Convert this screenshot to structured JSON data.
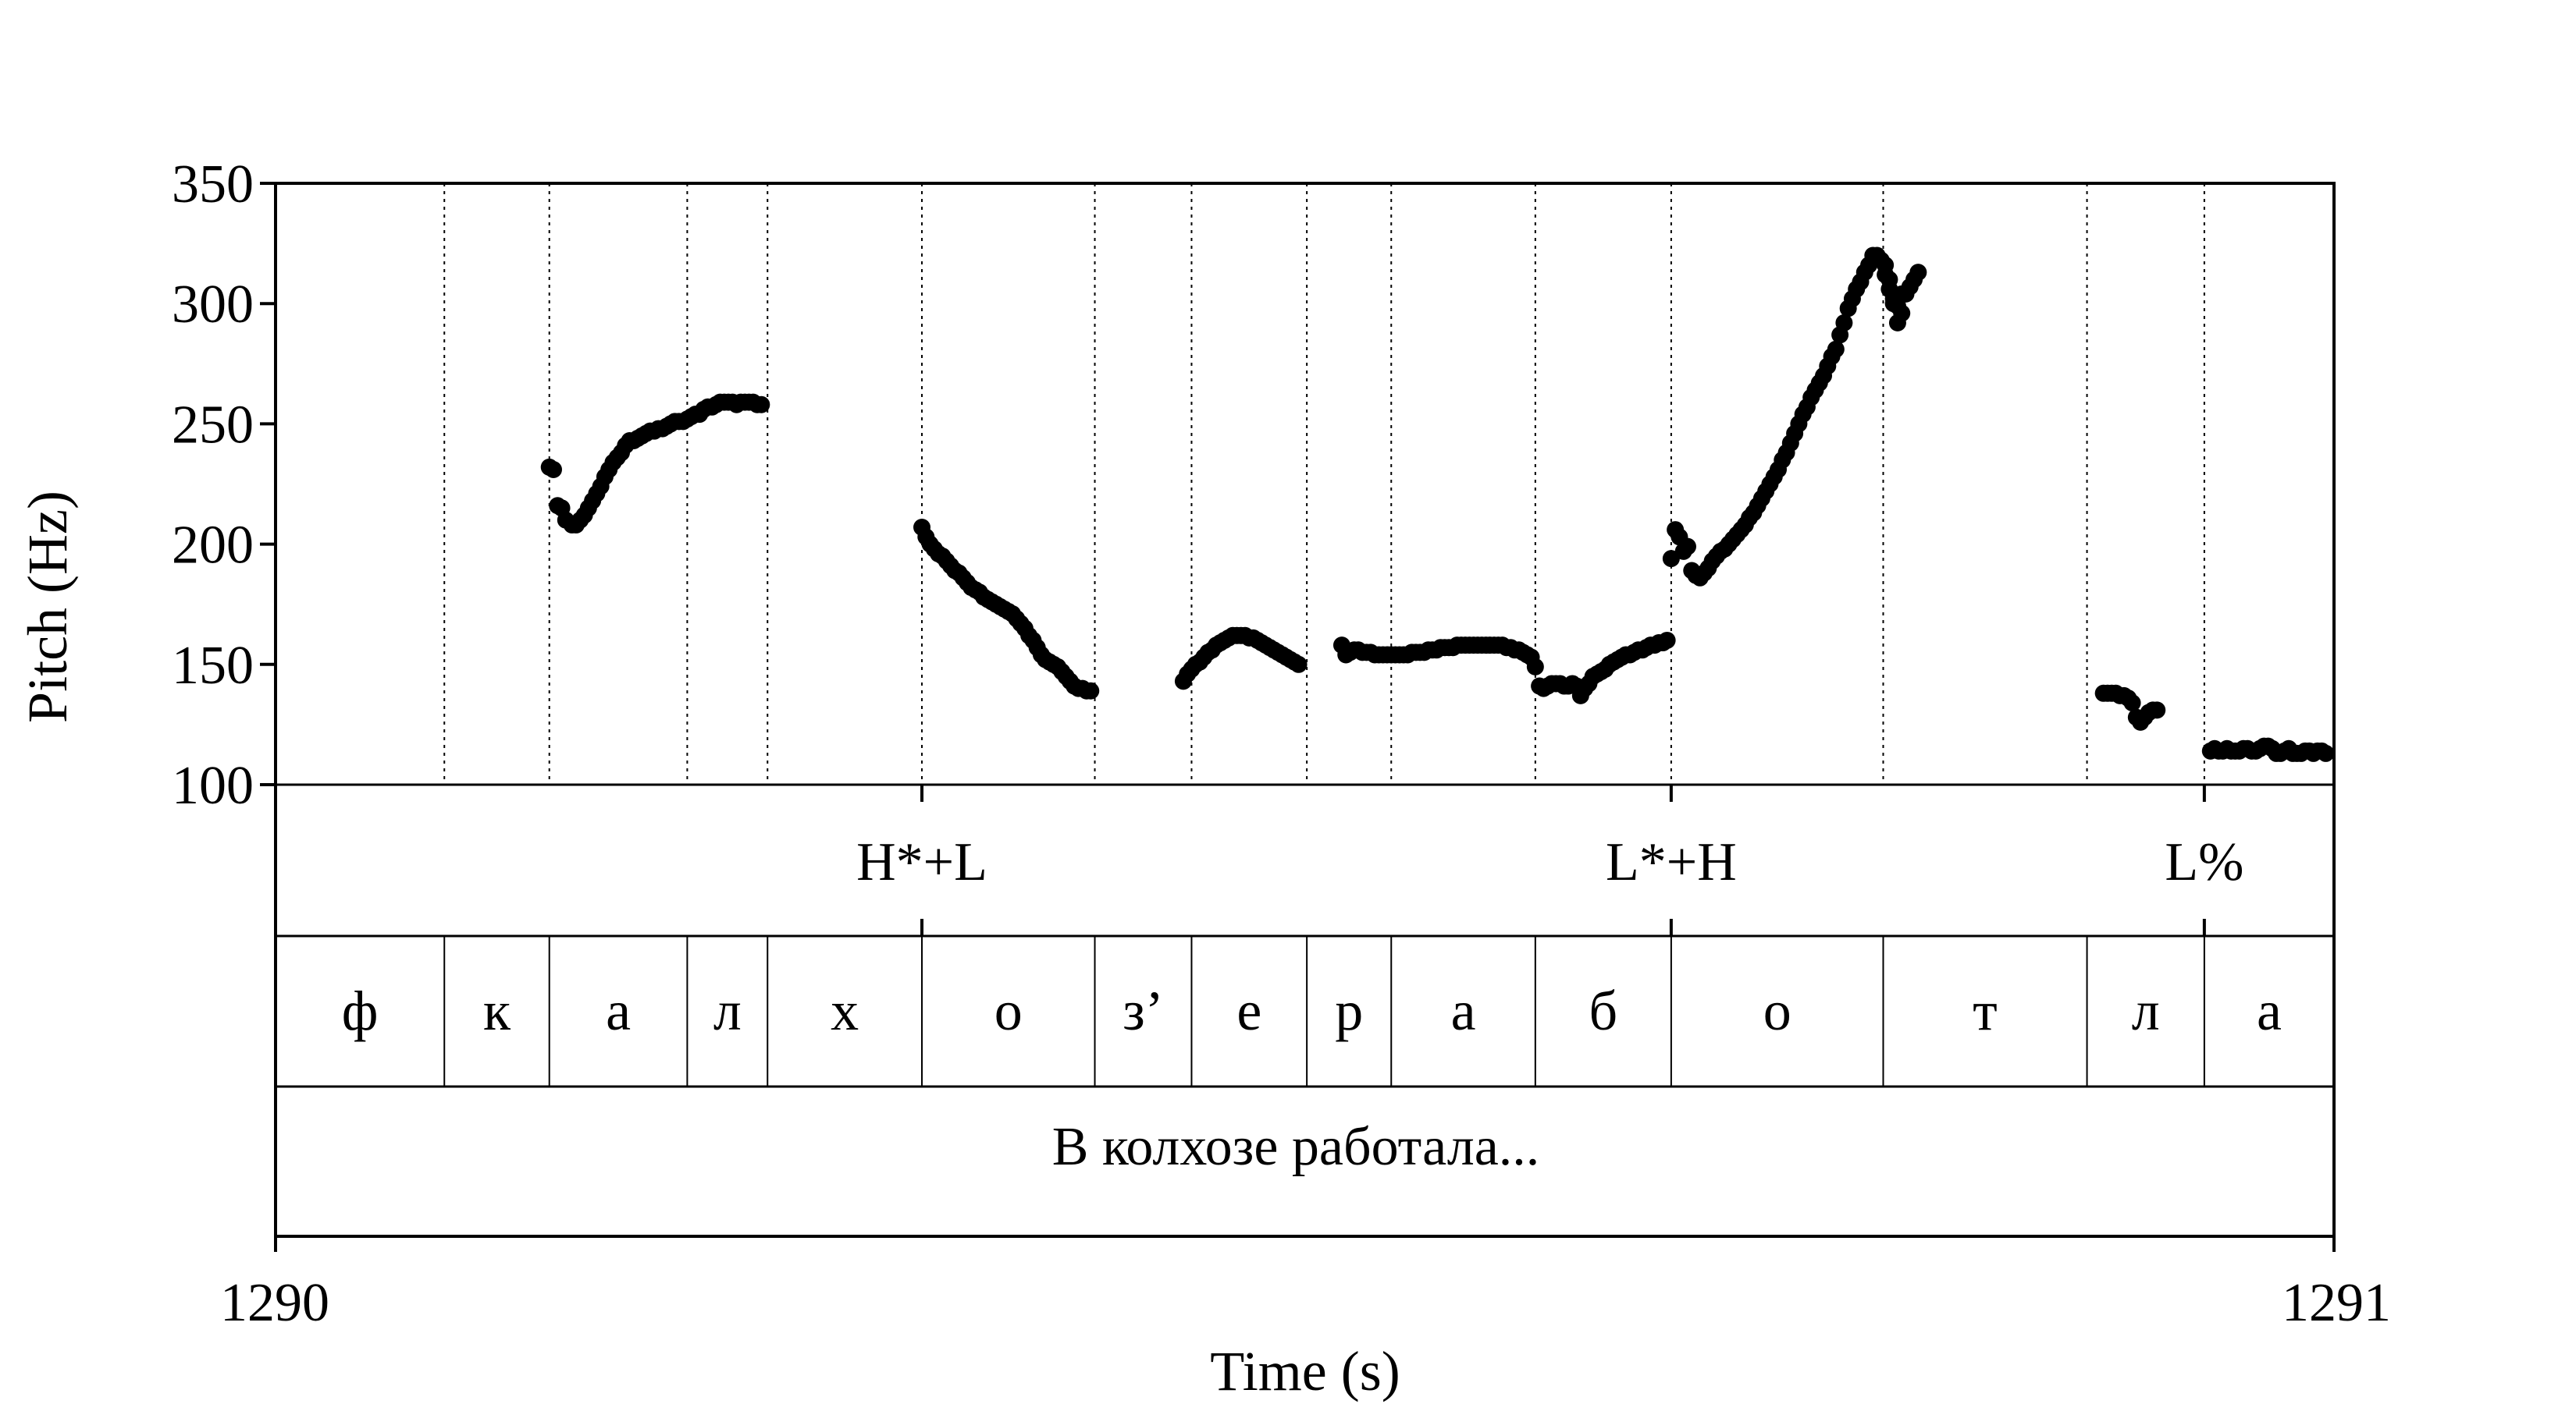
{
  "chart_data": {
    "type": "scatter",
    "xlabel": "Time (s)",
    "ylabel": "Pitch (Hz)",
    "xlim": [
      1290,
      1291
    ],
    "ylim": [
      100,
      350
    ],
    "x_ticks": [
      "1290",
      "1291"
    ],
    "y_ticks": [
      "350",
      "300",
      "250",
      "200",
      "150",
      "100"
    ],
    "grid": false,
    "boundaries": [
      1290.082,
      1290.133,
      1290.2,
      1290.239,
      1290.314,
      1290.398,
      1290.445,
      1290.501,
      1290.542,
      1290.612,
      1290.678,
      1290.781,
      1290.88,
      1290.937
    ],
    "tones": [
      {
        "t": 1290.314,
        "label": "H*+L"
      },
      {
        "t": 1290.678,
        "label": "L*+H"
      },
      {
        "t": 1290.937,
        "label": "L%"
      }
    ],
    "segments": [
      "ф",
      "к",
      "а",
      "л",
      "х",
      "о",
      "з’",
      "е",
      "р",
      "а",
      "б",
      "о",
      "т",
      "л",
      "а"
    ],
    "phrase": "В колхозе работала...",
    "pitch_series": [
      {
        "x": [
          1290.133,
          1290.135,
          1290.137,
          1290.139,
          1290.141,
          1290.144,
          1290.146,
          1290.148,
          1290.15,
          1290.152,
          1290.154,
          1290.156,
          1290.158,
          1290.16,
          1290.162,
          1290.164,
          1290.166,
          1290.168,
          1290.17,
          1290.172,
          1290.174,
          1290.176,
          1290.178,
          1290.18,
          1290.182,
          1290.184,
          1290.186,
          1290.188,
          1290.19,
          1290.192,
          1290.194,
          1290.196,
          1290.198,
          1290.2,
          1290.202,
          1290.204,
          1290.206,
          1290.208,
          1290.21,
          1290.212,
          1290.214,
          1290.216,
          1290.218,
          1290.22,
          1290.222,
          1290.224,
          1290.226,
          1290.228,
          1290.23,
          1290.232,
          1290.234,
          1290.236
        ],
        "y": [
          232,
          231,
          216,
          215,
          210,
          208,
          208,
          210,
          212,
          215,
          218,
          221,
          224,
          228,
          231,
          234,
          236,
          238,
          241,
          243,
          243,
          244,
          245,
          246,
          247,
          247,
          248,
          248,
          249,
          250,
          251,
          251,
          251,
          252,
          253,
          254,
          254,
          256,
          257,
          257,
          258,
          259,
          259,
          259,
          259,
          258,
          259,
          259,
          259,
          259,
          258,
          258
        ]
      },
      {
        "x": [
          1290.314,
          1290.316,
          1290.318,
          1290.32,
          1290.322,
          1290.324,
          1290.326,
          1290.328,
          1290.33,
          1290.332,
          1290.334,
          1290.336,
          1290.338,
          1290.34,
          1290.342,
          1290.344,
          1290.346,
          1290.348,
          1290.35,
          1290.352,
          1290.354,
          1290.356,
          1290.358,
          1290.36,
          1290.362,
          1290.364,
          1290.366,
          1290.368,
          1290.37,
          1290.372,
          1290.374,
          1290.376,
          1290.378,
          1290.38,
          1290.382,
          1290.384,
          1290.386,
          1290.388,
          1290.39,
          1290.392,
          1290.394,
          1290.396
        ],
        "y": [
          207,
          203,
          200,
          198,
          196,
          195,
          193,
          191,
          189,
          188,
          186,
          184,
          182,
          181,
          180,
          178,
          177,
          176,
          175,
          174,
          173,
          172,
          171,
          169,
          167,
          165,
          162,
          160,
          157,
          154,
          152,
          151,
          150,
          149,
          147,
          145,
          143,
          141,
          140,
          140,
          139,
          139
        ]
      },
      {
        "x": [
          1290.441,
          1290.443,
          1290.445,
          1290.447,
          1290.449,
          1290.451,
          1290.453,
          1290.455,
          1290.457,
          1290.459,
          1290.461,
          1290.463,
          1290.465,
          1290.467,
          1290.469,
          1290.471,
          1290.473,
          1290.475,
          1290.477,
          1290.479,
          1290.481,
          1290.483,
          1290.485,
          1290.487,
          1290.489,
          1290.491,
          1290.493,
          1290.495,
          1290.497
        ],
        "y": [
          143,
          146,
          148,
          150,
          151,
          153,
          155,
          156,
          158,
          159,
          160,
          161,
          162,
          162,
          162,
          162,
          161,
          161,
          160,
          159,
          158,
          157,
          156,
          155,
          154,
          153,
          152,
          151,
          150
        ]
      },
      {
        "x": [
          1290.518,
          1290.52,
          1290.522,
          1290.524,
          1290.526,
          1290.528,
          1290.53,
          1290.532,
          1290.534,
          1290.536,
          1290.538,
          1290.54,
          1290.542,
          1290.544,
          1290.546,
          1290.548,
          1290.55,
          1290.552,
          1290.554,
          1290.556,
          1290.558,
          1290.56,
          1290.562,
          1290.564,
          1290.566,
          1290.568,
          1290.57,
          1290.572,
          1290.574,
          1290.576,
          1290.578,
          1290.58,
          1290.582,
          1290.584,
          1290.586,
          1290.588,
          1290.59,
          1290.592,
          1290.594,
          1290.596,
          1290.598,
          1290.6,
          1290.602,
          1290.604,
          1290.606,
          1290.608,
          1290.61
        ],
        "y": [
          158,
          154,
          155,
          156,
          156,
          155,
          155,
          155,
          154,
          154,
          154,
          154,
          154,
          154,
          154,
          154,
          154,
          155,
          155,
          155,
          155,
          156,
          156,
          156,
          157,
          157,
          157,
          157,
          158,
          158,
          158,
          158,
          158,
          158,
          158,
          158,
          158,
          158,
          158,
          158,
          157,
          157,
          156,
          156,
          155,
          154,
          153
        ]
      },
      {
        "x": [
          1290.612,
          1290.614,
          1290.616,
          1290.618,
          1290.62,
          1290.622,
          1290.624,
          1290.626,
          1290.628,
          1290.63,
          1290.632,
          1290.634,
          1290.636,
          1290.638,
          1290.64,
          1290.642,
          1290.644,
          1290.646,
          1290.648,
          1290.65,
          1290.652,
          1290.654,
          1290.656,
          1290.658,
          1290.66,
          1290.662,
          1290.664,
          1290.666,
          1290.668,
          1290.67,
          1290.672,
          1290.674,
          1290.676
        ],
        "y": [
          149,
          141,
          140,
          141,
          142,
          142,
          142,
          141,
          141,
          142,
          141,
          137,
          140,
          142,
          145,
          146,
          147,
          148,
          150,
          151,
          152,
          153,
          154,
          154,
          155,
          156,
          156,
          157,
          158,
          158,
          159,
          159,
          160
        ]
      },
      {
        "x": [
          1290.678,
          1290.68,
          1290.682,
          1290.684,
          1290.686,
          1290.688,
          1290.69,
          1290.692,
          1290.694,
          1290.696,
          1290.698,
          1290.7,
          1290.702,
          1290.704,
          1290.706,
          1290.708,
          1290.71,
          1290.712,
          1290.714,
          1290.716,
          1290.718,
          1290.72,
          1290.722,
          1290.724,
          1290.726,
          1290.728,
          1290.73,
          1290.732,
          1290.734,
          1290.736,
          1290.738,
          1290.74,
          1290.742,
          1290.744,
          1290.746,
          1290.748,
          1290.75,
          1290.752,
          1290.754,
          1290.756,
          1290.758,
          1290.76,
          1290.762,
          1290.764,
          1290.766,
          1290.768,
          1290.77,
          1290.772,
          1290.774,
          1290.776,
          1290.778,
          1290.78,
          1290.782,
          1290.784,
          1290.786,
          1290.788,
          1290.79
        ],
        "y": [
          194,
          206,
          203,
          197,
          199,
          189,
          187,
          186,
          188,
          190,
          193,
          195,
          197,
          198,
          200,
          202,
          204,
          206,
          208,
          211,
          213,
          216,
          219,
          222,
          225,
          228,
          231,
          235,
          238,
          242,
          246,
          250,
          254,
          257,
          261,
          264,
          267,
          270,
          274,
          278,
          281,
          287,
          292,
          298,
          302,
          306,
          309,
          313,
          316,
          320,
          320,
          318,
          316,
          310,
          302,
          299,
          304
        ]
      },
      {
        "x": [
          1290.782,
          1290.784,
          1290.786,
          1290.788,
          1290.79,
          1290.792,
          1290.794,
          1290.796,
          1290.798
        ],
        "y": [
          312,
          306,
          300,
          292,
          296,
          304,
          307,
          310,
          313
        ]
      },
      {
        "x": [
          1290.888,
          1290.89,
          1290.892,
          1290.894,
          1290.896,
          1290.898,
          1290.9,
          1290.902,
          1290.904,
          1290.906,
          1290.908,
          1290.91,
          1290.912,
          1290.914
        ],
        "y": [
          138,
          138,
          138,
          138,
          137,
          137,
          136,
          134,
          128,
          126,
          128,
          130,
          131,
          131
        ]
      },
      {
        "x": [
          1290.94,
          1290.942,
          1290.944,
          1290.946,
          1290.948,
          1290.95,
          1290.952,
          1290.954,
          1290.956,
          1290.958,
          1290.96,
          1290.962,
          1290.964,
          1290.966,
          1290.968,
          1290.97,
          1290.972,
          1290.974,
          1290.976,
          1290.978,
          1290.98,
          1290.982,
          1290.984,
          1290.986,
          1290.988,
          1290.99,
          1290.992,
          1290.994,
          1290.996
        ],
        "y": [
          114,
          115,
          114,
          114,
          115,
          114,
          114,
          114,
          115,
          115,
          114,
          114,
          115,
          116,
          116,
          115,
          113,
          113,
          114,
          115,
          113,
          113,
          113,
          114,
          114,
          113,
          114,
          114,
          113
        ]
      }
    ]
  }
}
